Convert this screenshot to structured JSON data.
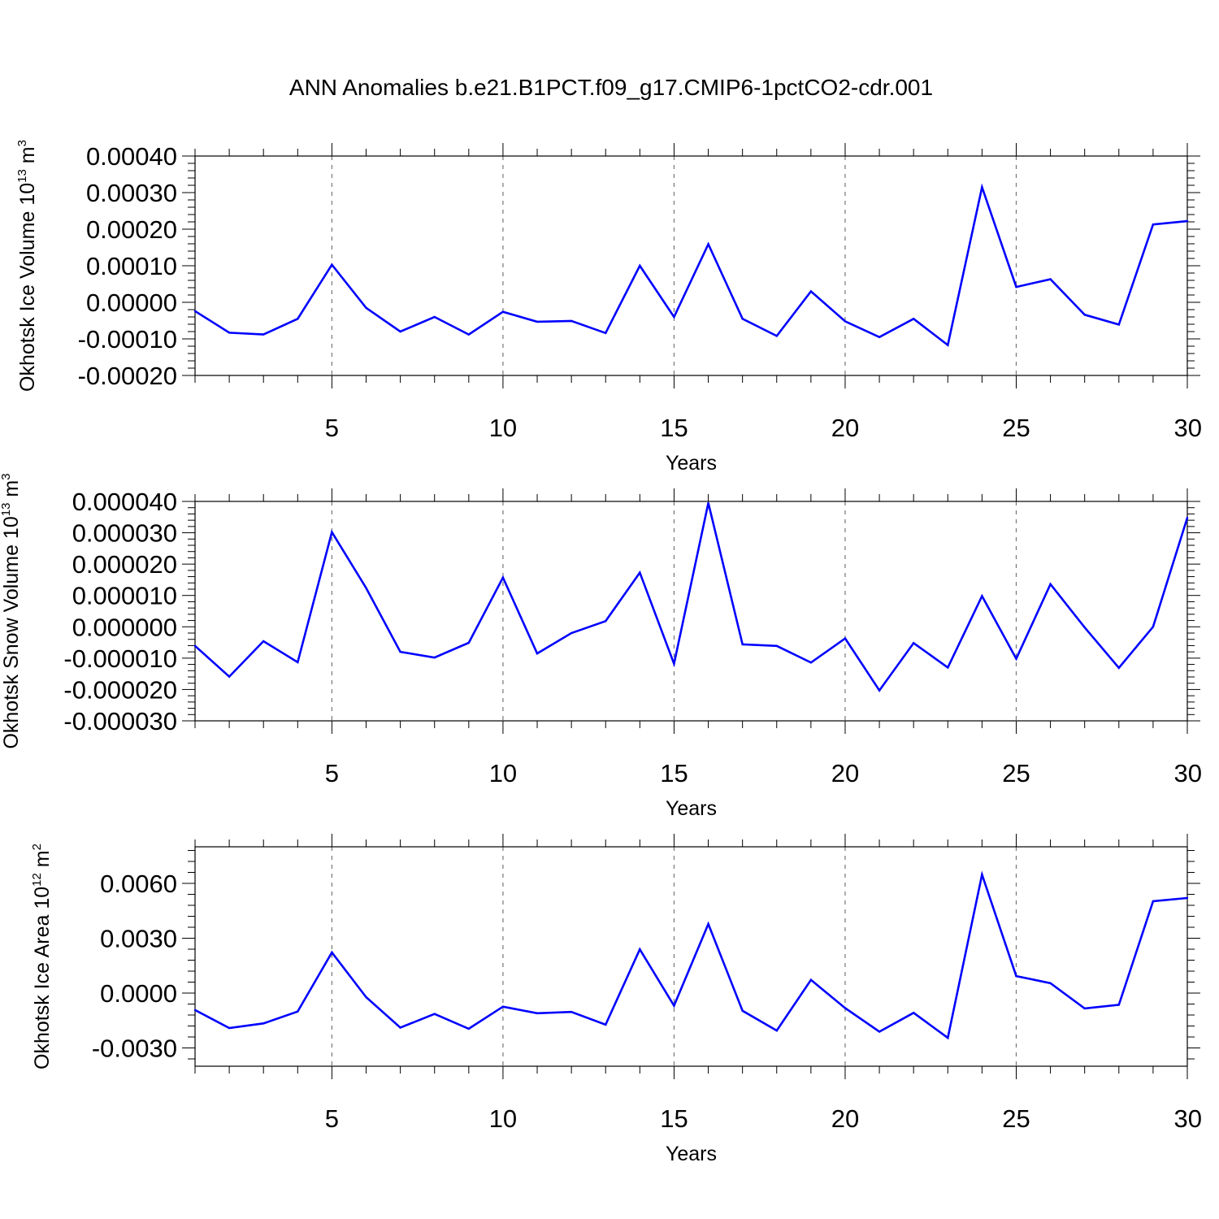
{
  "title": "ANN Anomalies b.e21.B1PCT.f09_g17.CMIP6-1pctCO2-cdr.001",
  "colors": {
    "line": "#0000ff",
    "axis": "#000000",
    "grid": "#777777"
  },
  "chart_data": [
    {
      "type": "line",
      "xlabel": "Years",
      "ylabel_main": "Okhotsk Ice Volume 10",
      "ylabel_exp": "13",
      "ylabel_unit": "m",
      "ylabel_unit_exp": "3",
      "xlim": [
        1,
        30
      ],
      "ylim": [
        -0.0002,
        0.0004
      ],
      "xticks": [
        5,
        10,
        15,
        20,
        25,
        30
      ],
      "xtick_labels": [
        "5",
        "10",
        "15",
        "20",
        "25",
        "30"
      ],
      "yticks": [
        -0.0002,
        -0.0001,
        0.0,
        0.0001,
        0.0002,
        0.0003,
        0.0004
      ],
      "ytick_labels": [
        "-0.00020",
        "-0.00010",
        "0.00000",
        "0.00010",
        "0.00020",
        "0.00030",
        "0.00040"
      ],
      "vertical_grid": true,
      "x": [
        1,
        2,
        3,
        4,
        5,
        6,
        7,
        8,
        9,
        10,
        11,
        12,
        13,
        14,
        15,
        16,
        17,
        18,
        19,
        20,
        21,
        22,
        23,
        24,
        25,
        26,
        27,
        28,
        29,
        30
      ],
      "series": [
        {
          "values": [
            -2.4e-05,
            -8.3e-05,
            -8.8e-05,
            -4.5e-05,
            0.000103,
            -1.5e-05,
            -8e-05,
            -4e-05,
            -8.8e-05,
            -2.6e-05,
            -5.3e-05,
            -5.1e-05,
            -8.4e-05,
            0.0001,
            -4e-05,
            0.000159,
            -4.5e-05,
            -9.2e-05,
            3e-05,
            -5.2e-05,
            -9.5e-05,
            -4.5e-05,
            -0.000117,
            0.000315,
            4.2e-05,
            6.3e-05,
            -3.4e-05,
            -6.1e-05,
            0.000213,
            0.000222
          ]
        }
      ]
    },
    {
      "type": "line",
      "xlabel": "Years",
      "ylabel_main": "Okhotsk Snow Volume 10",
      "ylabel_exp": "13",
      "ylabel_unit": "m",
      "ylabel_unit_exp": "3",
      "xlim": [
        1,
        30
      ],
      "ylim": [
        -3e-05,
        4e-05
      ],
      "xticks": [
        5,
        10,
        15,
        20,
        25,
        30
      ],
      "xtick_labels": [
        "5",
        "10",
        "15",
        "20",
        "25",
        "30"
      ],
      "yticks": [
        -3e-05,
        -2e-05,
        -1e-05,
        0.0,
        1e-05,
        2e-05,
        3e-05,
        4e-05
      ],
      "ytick_labels": [
        "-0.000030",
        "-0.000020",
        "-0.000010",
        "0.000000",
        "0.000010",
        "0.000020",
        "0.000030",
        "0.000040"
      ],
      "vertical_grid": true,
      "x": [
        1,
        2,
        3,
        4,
        5,
        6,
        7,
        8,
        9,
        10,
        11,
        12,
        13,
        14,
        15,
        16,
        17,
        18,
        19,
        20,
        21,
        22,
        23,
        24,
        25,
        26,
        27,
        28,
        29,
        30
      ],
      "series": [
        {
          "values": [
            -6.1e-06,
            -1.59e-05,
            -4.6e-06,
            -1.13e-05,
            3.02e-05,
            1.24e-05,
            -8e-06,
            -9.8e-06,
            -5.1e-06,
            1.57e-05,
            -8.5e-06,
            -2e-06,
            1.8e-06,
            1.73e-05,
            -1.18e-05,
            3.95e-05,
            -5.6e-06,
            -6.1e-06,
            -1.14e-05,
            -3.7e-06,
            -2.03e-05,
            -5.2e-06,
            -1.3e-05,
            9.8e-06,
            -1.02e-05,
            1.36e-05,
            -2e-07,
            -1.31e-05,
            0.0,
            3.48e-05
          ]
        }
      ]
    },
    {
      "type": "line",
      "xlabel": "Years",
      "ylabel_main": "Okhotsk Ice Area 10",
      "ylabel_exp": "12",
      "ylabel_unit": "m",
      "ylabel_unit_exp": "2",
      "xlim": [
        1,
        30
      ],
      "ylim": [
        -0.004,
        0.008
      ],
      "xticks": [
        5,
        10,
        15,
        20,
        25,
        30
      ],
      "xtick_labels": [
        "5",
        "10",
        "15",
        "20",
        "25",
        "30"
      ],
      "yticks": [
        -0.003,
        0.0,
        0.003,
        0.006
      ],
      "ytick_labels": [
        "-0.0030",
        "0.0000",
        "0.0030",
        "0.0060"
      ],
      "vertical_grid": true,
      "x": [
        1,
        2,
        3,
        4,
        5,
        6,
        7,
        8,
        9,
        10,
        11,
        12,
        13,
        14,
        15,
        16,
        17,
        18,
        19,
        20,
        21,
        22,
        23,
        24,
        25,
        26,
        27,
        28,
        29,
        30
      ],
      "series": [
        {
          "values": [
            -0.00093,
            -0.00191,
            -0.00166,
            -0.00101,
            0.00222,
            -0.00022,
            -0.00189,
            -0.00114,
            -0.00195,
            -0.00074,
            -0.0011,
            -0.00103,
            -0.00173,
            0.00239,
            -0.00069,
            0.00378,
            -0.00097,
            -0.00205,
            0.00072,
            -0.00082,
            -0.00211,
            -0.00108,
            -0.00245,
            0.00648,
            0.00093,
            0.00054,
            -0.00084,
            -0.00064,
            0.00502,
            0.0052
          ]
        }
      ]
    }
  ]
}
